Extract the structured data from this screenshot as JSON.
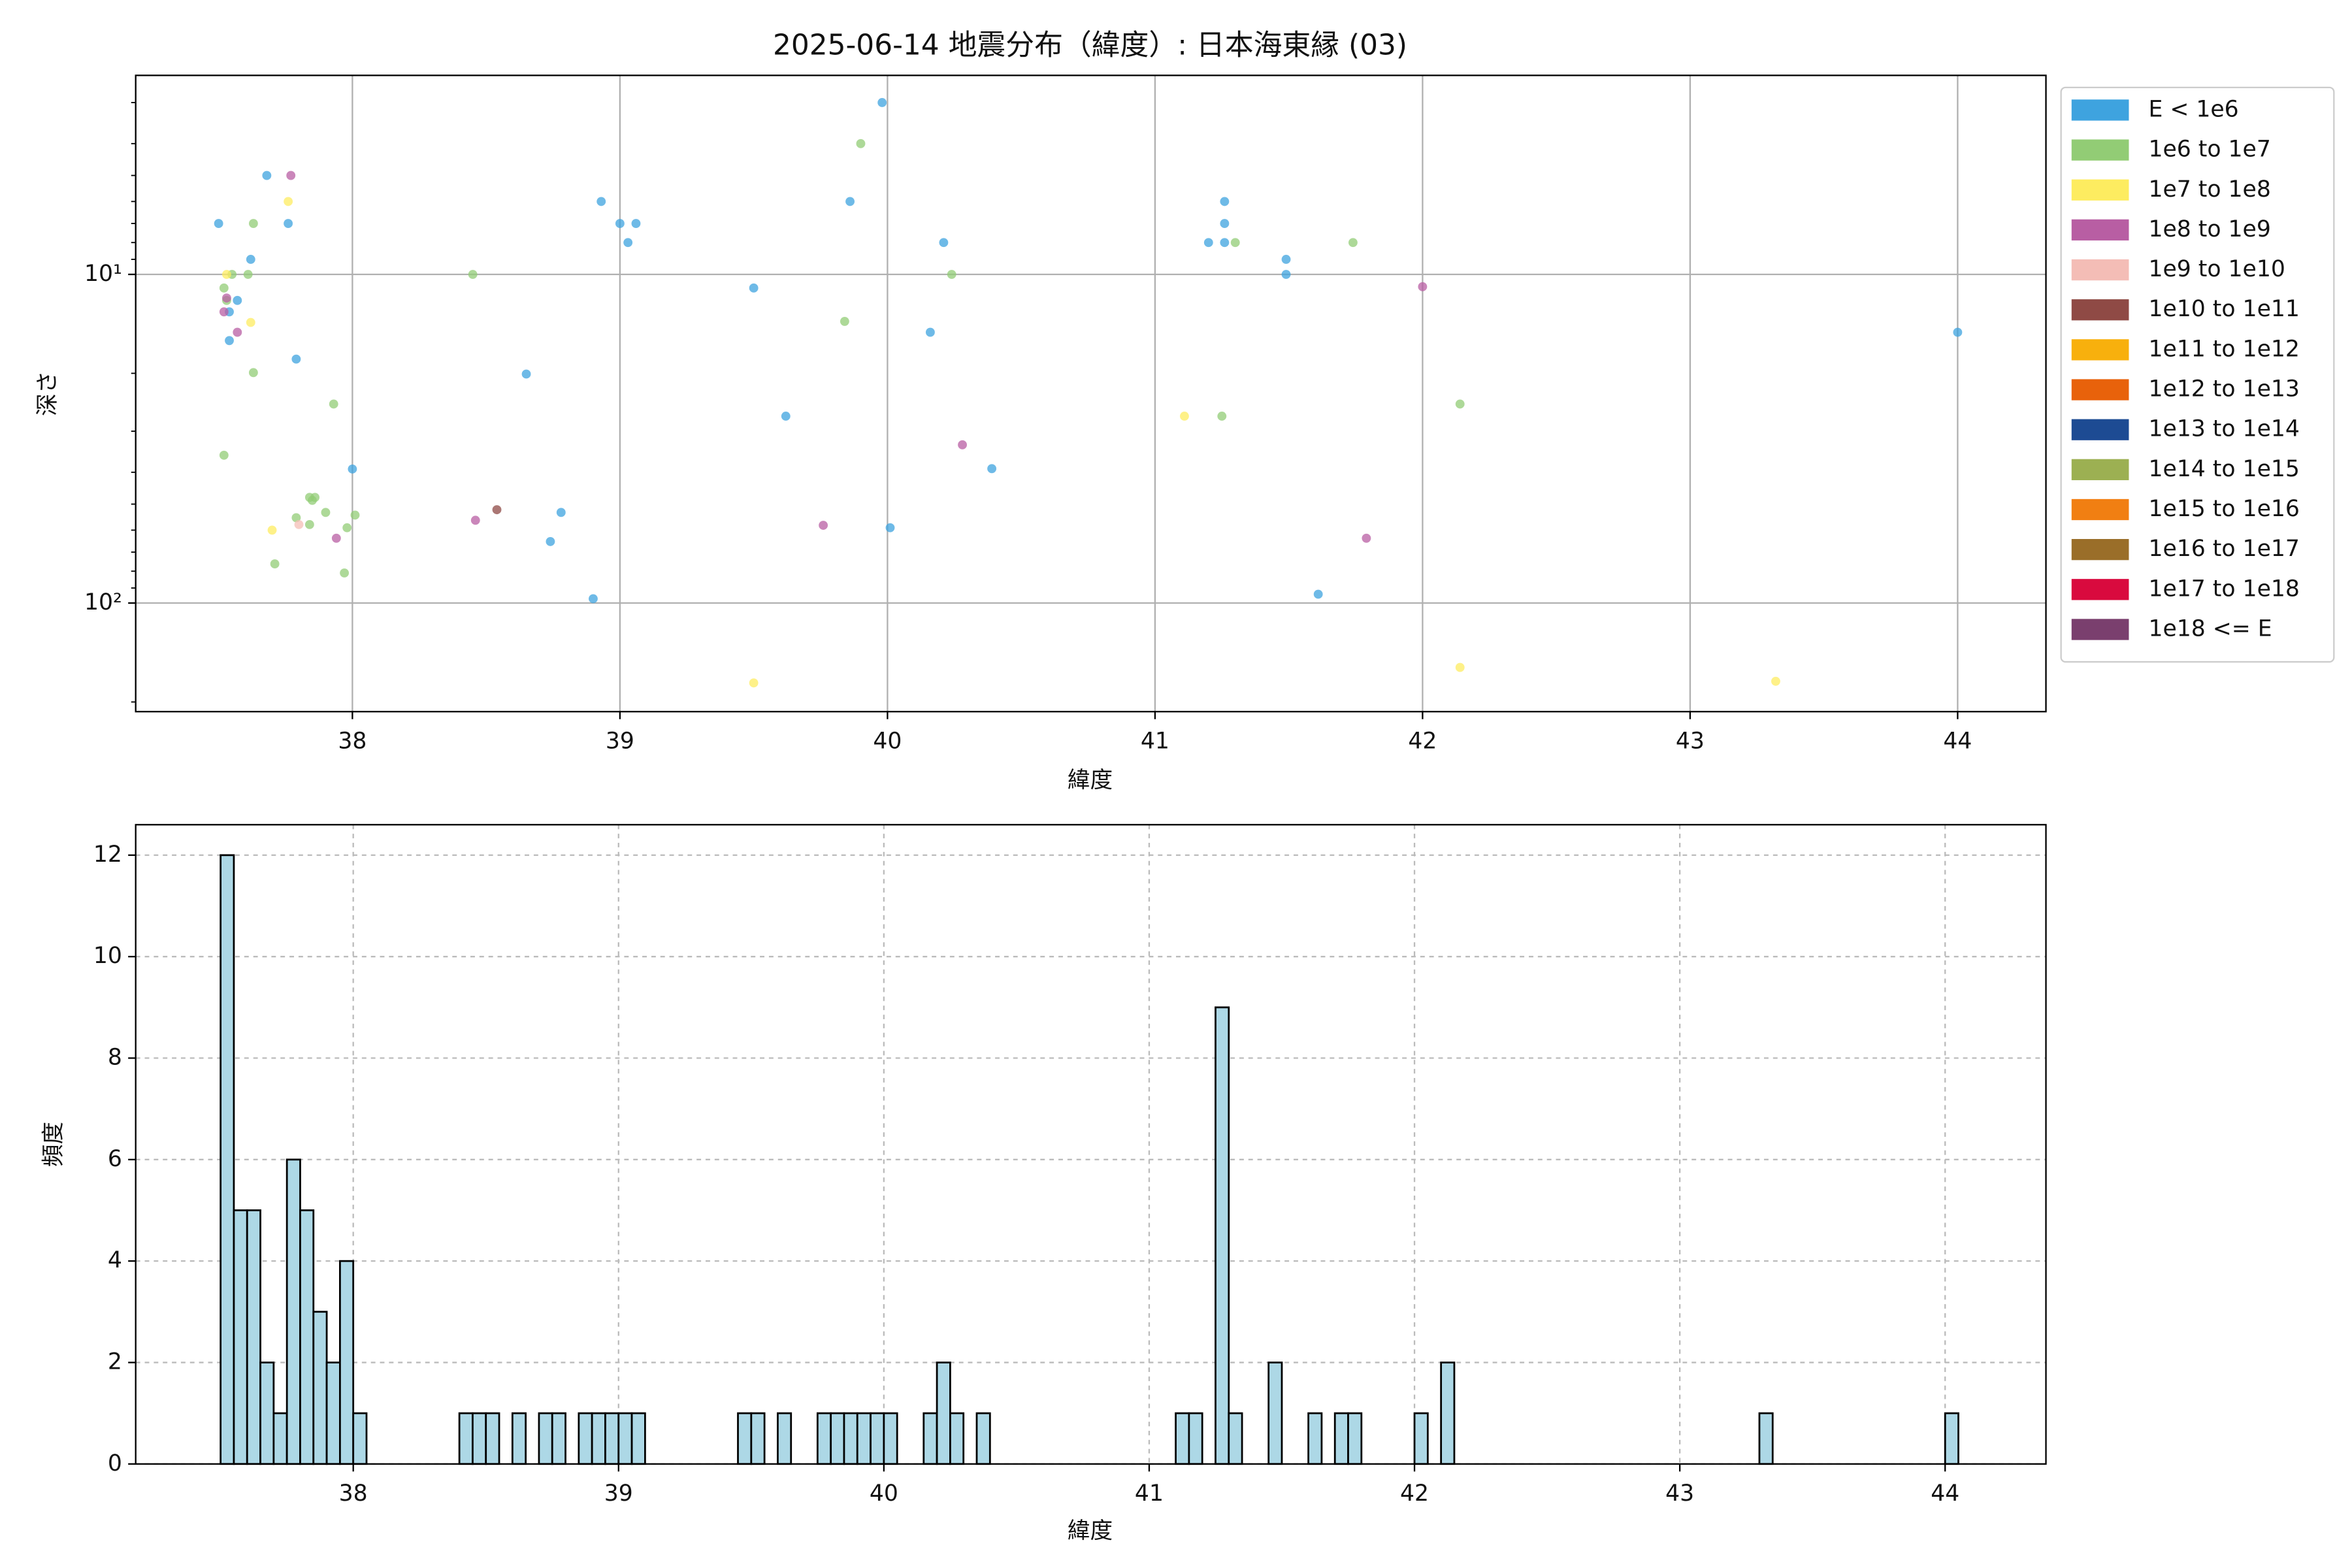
{
  "chart_data": [
    {
      "type": "scatter",
      "title": "2025-06-14 地震分布（緯度）: 日本海東縁 (03)",
      "xlabel": "緯度",
      "ylabel": "深さ",
      "xlim": [
        37.19,
        44.33
      ],
      "ylim": [
        2.48,
        214
      ],
      "yscale": "log",
      "y_inverted": true,
      "xticks": [
        38,
        39,
        40,
        41,
        42,
        43,
        44
      ],
      "yticks": [
        {
          "value": 10,
          "label": "10¹"
        },
        {
          "value": 100,
          "label": "10²"
        }
      ],
      "yminorticks": [
        3,
        4,
        5,
        6,
        7,
        8,
        9,
        20,
        30,
        40,
        50,
        60,
        70,
        80,
        90,
        200
      ],
      "grid": true,
      "legend": "outside-right",
      "series": [
        {
          "name": "E < 1e6",
          "color": "#3ea3df",
          "x": [
            37.5,
            37.68,
            37.76,
            37.62,
            37.57,
            37.54,
            37.54,
            37.79,
            38.0,
            38.93,
            39.0,
            39.03,
            39.06,
            38.65,
            38.78,
            38.74,
            38.9,
            39.5,
            39.62,
            39.86,
            39.98,
            40.01,
            40.16,
            40.21,
            40.39,
            41.2,
            41.26,
            41.26,
            41.26,
            41.49,
            41.49,
            41.61,
            44.0
          ],
          "values": [
            7.0,
            5.0,
            7.0,
            9.0,
            12.0,
            13.0,
            15.9,
            18.1,
            39.1,
            6.0,
            7.0,
            8.0,
            7.0,
            20.1,
            53,
            65,
            97,
            11,
            27,
            6.0,
            3.0,
            59,
            15,
            8.0,
            39,
            8.0,
            6.0,
            7.0,
            8.0,
            9.0,
            10,
            94,
            15
          ]
        },
        {
          "name": "1e6 to 1e7",
          "color": "#92cc75",
          "x": [
            37.63,
            37.52,
            37.53,
            37.61,
            37.55,
            37.63,
            37.52,
            37.93,
            38.45,
            37.71,
            37.79,
            37.85,
            37.84,
            37.86,
            37.84,
            37.9,
            37.98,
            38.01,
            37.97,
            39.9,
            39.84,
            40.24,
            41.25,
            41.3,
            41.74,
            42.14
          ],
          "values": [
            7.0,
            11,
            12,
            10,
            10,
            19.9,
            35.5,
            24.8,
            10,
            76,
            55,
            48.7,
            47.7,
            47.7,
            57.7,
            53,
            59,
            54,
            81,
            4.0,
            13.9,
            10,
            27,
            8.0,
            8.0,
            24.8
          ]
        },
        {
          "name": "1e7 to 1e8",
          "color": "#fdec60",
          "x": [
            37.76,
            37.53,
            37.62,
            37.7,
            41.11,
            39.5,
            42.14,
            43.32
          ],
          "values": [
            6.0,
            10,
            14,
            60,
            27,
            175,
            157,
            173
          ]
        },
        {
          "name": "1e8 to 1e9",
          "color": "#b85ea3",
          "x": [
            37.77,
            37.52,
            37.53,
            37.57,
            37.94,
            38.46,
            39.76,
            40.28,
            41.79,
            42.0
          ],
          "values": [
            5.0,
            13.0,
            11.8,
            15,
            63.5,
            56,
            58,
            33,
            63.5,
            10.9
          ]
        },
        {
          "name": "1e9 to 1e10",
          "color": "#f4bdb6",
          "x": [
            37.8
          ],
          "values": [
            57.7
          ]
        },
        {
          "name": "1e10 to 1e11",
          "color": "#8f4a45",
          "x": [
            38.54
          ],
          "values": [
            52
          ]
        },
        {
          "name": "1e11 to 1e12",
          "color": "#f8b00d",
          "x": [],
          "values": []
        },
        {
          "name": "1e12 to 1e13",
          "color": "#e8620b",
          "x": [],
          "values": []
        },
        {
          "name": "1e13 to 1e14",
          "color": "#1d4b93",
          "x": [],
          "values": []
        },
        {
          "name": "1e14 to 1e15",
          "color": "#9cb052",
          "x": [],
          "values": []
        },
        {
          "name": "1e15 to 1e16",
          "color": "#f17f12",
          "x": [],
          "values": []
        },
        {
          "name": "1e16 to 1e17",
          "color": "#9a6e29",
          "x": [],
          "values": []
        },
        {
          "name": "1e17 to 1e18",
          "color": "#d90a3e",
          "x": [],
          "values": []
        },
        {
          "name": "1e18 <= E",
          "color": "#7a3f6e",
          "x": [],
          "values": []
        }
      ]
    },
    {
      "type": "histogram",
      "xlabel": "緯度",
      "ylabel": "頻度",
      "color": "#add8e6",
      "edgecolor": "#000000",
      "xlim": [
        37.18,
        44.38
      ],
      "ylim": [
        0,
        12.6
      ],
      "xticks": [
        38,
        39,
        40,
        41,
        42,
        43,
        44
      ],
      "yticks": [
        0,
        2,
        4,
        6,
        8,
        10,
        12
      ],
      "grid": "dashed",
      "bins": [
        37.5,
        37.55,
        37.6,
        37.65,
        37.7,
        37.75,
        37.8,
        37.85,
        37.9,
        37.95,
        38.0,
        38.05,
        38.1,
        38.15,
        38.2,
        38.25,
        38.3,
        38.35,
        38.4,
        38.45,
        38.5,
        38.55,
        38.6,
        38.65,
        38.7,
        38.75,
        38.8,
        38.85,
        38.9,
        38.95,
        39.0,
        39.05,
        39.1,
        39.15,
        39.2,
        39.25,
        39.3,
        39.35,
        39.4,
        39.45,
        39.5,
        39.55,
        39.6,
        39.65,
        39.7,
        39.75,
        39.8,
        39.85,
        39.9,
        39.95,
        40.0,
        40.05,
        40.1,
        40.15,
        40.2,
        40.25,
        40.3,
        40.35,
        40.4,
        40.45,
        40.5,
        40.55,
        40.6,
        40.65,
        40.7,
        40.75,
        40.8,
        40.85,
        40.9,
        40.95,
        41.0,
        41.05,
        41.1,
        41.15,
        41.2,
        41.25,
        41.3,
        41.35,
        41.4,
        41.45,
        41.5,
        41.55,
        41.6,
        41.65,
        41.7,
        41.75,
        41.8,
        41.85,
        41.9,
        41.95,
        42.0,
        42.05,
        42.1,
        42.15,
        42.2,
        42.25,
        42.3,
        42.35,
        42.4,
        42.45,
        42.5,
        42.55,
        42.6,
        42.65,
        42.7,
        42.75,
        42.8,
        42.85,
        42.9,
        42.95,
        43.0,
        43.05,
        43.1,
        43.15,
        43.2,
        43.25,
        43.3,
        43.35,
        43.4,
        43.45,
        43.5,
        43.55,
        43.6,
        43.65,
        43.7,
        43.75,
        43.8,
        43.85,
        43.9,
        43.95,
        44.0,
        44.05
      ],
      "values": [
        12,
        5,
        5,
        2,
        1,
        6,
        5,
        3,
        2,
        4,
        1,
        0,
        0,
        0,
        0,
        0,
        0,
        0,
        1,
        1,
        1,
        0,
        1,
        0,
        1,
        1,
        0,
        1,
        1,
        1,
        1,
        1,
        0,
        0,
        0,
        0,
        0,
        0,
        0,
        1,
        1,
        0,
        1,
        0,
        0,
        1,
        1,
        1,
        1,
        1,
        1,
        0,
        0,
        1,
        2,
        1,
        0,
        1,
        0,
        0,
        0,
        0,
        0,
        0,
        0,
        0,
        0,
        0,
        0,
        0,
        0,
        0,
        1,
        1,
        0,
        9,
        1,
        0,
        0,
        2,
        0,
        0,
        1,
        0,
        1,
        1,
        0,
        0,
        0,
        0,
        1,
        0,
        2,
        0,
        0,
        0,
        0,
        0,
        0,
        0,
        0,
        0,
        0,
        0,
        0,
        0,
        0,
        0,
        0,
        0,
        0,
        0,
        0,
        0,
        0,
        0,
        1,
        0,
        0,
        0,
        0,
        0,
        0,
        0,
        0,
        0,
        0,
        0,
        0,
        0,
        1
      ]
    }
  ]
}
